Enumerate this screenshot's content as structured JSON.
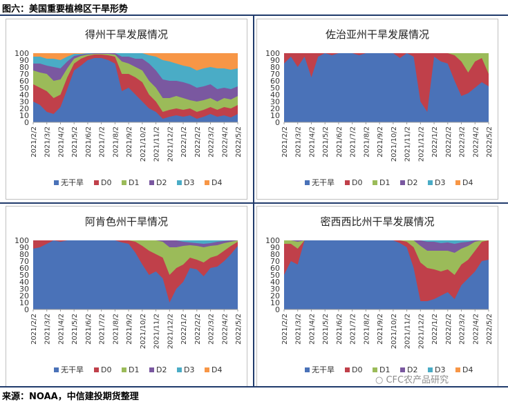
{
  "figure_title": "图六：美国重要植棉区干旱形势",
  "source_text": "来源：NOAA，中信建投期货整理",
  "watermark_text": "CFC农产品研究",
  "colors": {
    "无干旱": "#4a72b8",
    "D0": "#c0404a",
    "D1": "#9bbb59",
    "D2": "#7a58a0",
    "D3": "#4aacc6",
    "D4": "#f79646",
    "rule": "#1f3a6b",
    "frame": "#bfbfbf"
  },
  "chart_data": [
    {
      "type": "area",
      "title": "得州干旱发展情况",
      "categories": [
        "2021/2/2",
        "2021/3/2",
        "2021/4/2",
        "2021/5/2",
        "2021/6/2",
        "2021/7/2",
        "2021/8/2",
        "2021/9/2",
        "2021/10/2",
        "2021/11/2",
        "2021/12/2",
        "2022/1/2",
        "2022/2/2",
        "2022/3/2",
        "2022/4/2",
        "2022/5/2"
      ],
      "ylim": [
        0,
        100
      ],
      "yticks": [
        0,
        10,
        20,
        30,
        40,
        50,
        60,
        70,
        80,
        90,
        100
      ],
      "legend": [
        "无干旱",
        "D0",
        "D1",
        "D2",
        "D3",
        "D4"
      ],
      "x": [
        0,
        0.5,
        1,
        1.5,
        2,
        2.5,
        3,
        3.5,
        4,
        4.5,
        5,
        5.5,
        6,
        6.5,
        7,
        7.5,
        8,
        8.5,
        9,
        9.5,
        10,
        10.5,
        11,
        11.5,
        12,
        12.5,
        13,
        13.5,
        14,
        14.5,
        15
      ],
      "series": [
        {
          "name": "无干旱",
          "cum": [
            30,
            25,
            15,
            12,
            22,
            48,
            75,
            82,
            90,
            93,
            93,
            90,
            85,
            45,
            50,
            40,
            30,
            20,
            15,
            5,
            8,
            10,
            8,
            10,
            5,
            8,
            12,
            8,
            10,
            7,
            12
          ]
        },
        {
          "name": "D0",
          "cum": [
            55,
            50,
            45,
            35,
            40,
            65,
            85,
            92,
            96,
            98,
            98,
            97,
            95,
            70,
            70,
            65,
            58,
            40,
            30,
            15,
            18,
            20,
            18,
            20,
            15,
            18,
            22,
            18,
            22,
            20,
            25
          ]
        },
        {
          "name": "D1",
          "cum": [
            75,
            72,
            70,
            60,
            62,
            78,
            92,
            96,
            98,
            99,
            99,
            99,
            98,
            88,
            85,
            80,
            75,
            60,
            50,
            35,
            35,
            38,
            35,
            32,
            30,
            32,
            35,
            30,
            35,
            33,
            38
          ]
        },
        {
          "name": "D2",
          "cum": [
            85,
            85,
            82,
            80,
            78,
            88,
            96,
            98,
            99,
            100,
            100,
            100,
            100,
            95,
            95,
            92,
            92,
            85,
            75,
            62,
            60,
            60,
            58,
            55,
            50,
            52,
            55,
            48,
            50,
            48,
            52
          ]
        },
        {
          "name": "D3",
          "cum": [
            95,
            95,
            92,
            92,
            90,
            95,
            99,
            99,
            100,
            100,
            100,
            100,
            100,
            100,
            100,
            100,
            100,
            97,
            95,
            90,
            88,
            85,
            82,
            80,
            75,
            78,
            80,
            78,
            78,
            76,
            78
          ]
        },
        {
          "name": "D4",
          "cum": [
            100,
            100,
            100,
            100,
            100,
            100,
            100,
            100,
            100,
            100,
            100,
            100,
            100,
            100,
            100,
            100,
            100,
            100,
            100,
            100,
            100,
            100,
            100,
            100,
            100,
            100,
            100,
            100,
            100,
            100,
            100
          ]
        }
      ]
    },
    {
      "type": "area",
      "title": "佐治亚州干旱发展情况",
      "categories": [
        "2021/2/2",
        "2021/3/2",
        "2021/4/2",
        "2021/5/2",
        "2021/6/2",
        "2021/7/2",
        "2021/8/2",
        "2021/9/2",
        "2021/10/2",
        "2021/11/2",
        "2021/12/2",
        "2022/1/2",
        "2022/2/2",
        "2022/3/2",
        "2022/4/2",
        "2022/5/2"
      ],
      "ylim": [
        0,
        100
      ],
      "yticks": [
        0,
        10,
        20,
        30,
        40,
        50,
        60,
        70,
        80,
        90,
        100
      ],
      "legend": [
        "无干旱",
        "D0",
        "D1",
        "D2",
        "D3",
        "D4"
      ],
      "x": [
        0,
        0.5,
        1,
        1.5,
        2,
        2.5,
        3,
        3.5,
        4,
        4.5,
        5,
        5.5,
        6,
        6.5,
        7,
        7.5,
        8,
        8.5,
        9,
        9.5,
        10,
        10.5,
        11,
        11.5,
        12,
        12.5,
        13,
        13.5,
        14,
        14.5,
        15
      ],
      "series": [
        {
          "name": "无干旱",
          "cum": [
            85,
            95,
            80,
            95,
            65,
            95,
            100,
            97,
            100,
            100,
            100,
            97,
            100,
            100,
            100,
            100,
            100,
            93,
            100,
            95,
            30,
            15,
            95,
            88,
            85,
            60,
            38,
            42,
            50,
            58,
            52
          ]
        },
        {
          "name": "D0",
          "cum": [
            100,
            100,
            100,
            100,
            100,
            100,
            100,
            100,
            100,
            100,
            100,
            100,
            100,
            100,
            100,
            100,
            100,
            100,
            100,
            100,
            100,
            100,
            100,
            100,
            100,
            97,
            88,
            72,
            88,
            93,
            70
          ]
        },
        {
          "name": "D1",
          "cum": [
            100,
            100,
            100,
            100,
            100,
            100,
            100,
            100,
            100,
            100,
            100,
            100,
            100,
            100,
            100,
            100,
            100,
            100,
            100,
            100,
            100,
            100,
            100,
            100,
            100,
            100,
            100,
            100,
            100,
            100,
            100
          ]
        },
        {
          "name": "D2",
          "cum": [
            100,
            100,
            100,
            100,
            100,
            100,
            100,
            100,
            100,
            100,
            100,
            100,
            100,
            100,
            100,
            100,
            100,
            100,
            100,
            100,
            100,
            100,
            100,
            100,
            100,
            100,
            100,
            100,
            100,
            100,
            100
          ]
        },
        {
          "name": "D3",
          "cum": [
            100,
            100,
            100,
            100,
            100,
            100,
            100,
            100,
            100,
            100,
            100,
            100,
            100,
            100,
            100,
            100,
            100,
            100,
            100,
            100,
            100,
            100,
            100,
            100,
            100,
            100,
            100,
            100,
            100,
            100,
            100
          ]
        },
        {
          "name": "D4",
          "cum": [
            100,
            100,
            100,
            100,
            100,
            100,
            100,
            100,
            100,
            100,
            100,
            100,
            100,
            100,
            100,
            100,
            100,
            100,
            100,
            100,
            100,
            100,
            100,
            100,
            100,
            100,
            100,
            100,
            100,
            100,
            100
          ]
        }
      ]
    },
    {
      "type": "area",
      "title": "阿肯色州干旱情况",
      "categories": [
        "2021/2/2",
        "2021/3/2",
        "2021/4/2",
        "2021/5/2",
        "2021/6/2",
        "2021/7/2",
        "2021/8/2",
        "2021/9/2",
        "2021/10/2",
        "2021/11/2",
        "2021/12/2",
        "2022/1/2",
        "2022/2/2",
        "2022/3/2",
        "2022/4/2",
        "2022/5/2"
      ],
      "ylim": [
        0,
        100
      ],
      "yticks": [
        0,
        10,
        20,
        30,
        40,
        50,
        60,
        70,
        80,
        90,
        100
      ],
      "legend": [
        "无干旱",
        "D0",
        "D1",
        "D2",
        "D3",
        "D4"
      ],
      "x": [
        0,
        0.5,
        1,
        1.5,
        2,
        2.5,
        3,
        3.5,
        4,
        4.5,
        5,
        5.5,
        6,
        6.5,
        7,
        7.5,
        8,
        8.5,
        9,
        9.5,
        10,
        10.5,
        11,
        11.5,
        12,
        12.5,
        13,
        13.5,
        14,
        14.5,
        15
      ],
      "series": [
        {
          "name": "无干旱",
          "cum": [
            88,
            90,
            95,
            100,
            98,
            100,
            100,
            100,
            100,
            100,
            100,
            100,
            100,
            97,
            95,
            82,
            65,
            50,
            55,
            45,
            10,
            30,
            40,
            60,
            58,
            48,
            60,
            62,
            70,
            80,
            92
          ]
        },
        {
          "name": "D0",
          "cum": [
            100,
            100,
            100,
            100,
            100,
            100,
            100,
            100,
            100,
            100,
            100,
            100,
            100,
            100,
            100,
            98,
            92,
            85,
            80,
            75,
            50,
            60,
            65,
            75,
            72,
            68,
            75,
            78,
            85,
            92,
            98
          ]
        },
        {
          "name": "D1",
          "cum": [
            100,
            100,
            100,
            100,
            100,
            100,
            100,
            100,
            100,
            100,
            100,
            100,
            100,
            100,
            100,
            100,
            100,
            100,
            100,
            98,
            90,
            90,
            92,
            93,
            92,
            90,
            92,
            93,
            96,
            98,
            100
          ]
        },
        {
          "name": "D2",
          "cum": [
            100,
            100,
            100,
            100,
            100,
            100,
            100,
            100,
            100,
            100,
            100,
            100,
            100,
            100,
            100,
            100,
            100,
            100,
            100,
            100,
            100,
            100,
            98,
            97,
            96,
            95,
            96,
            98,
            99,
            100,
            100
          ]
        },
        {
          "name": "D3",
          "cum": [
            100,
            100,
            100,
            100,
            100,
            100,
            100,
            100,
            100,
            100,
            100,
            100,
            100,
            100,
            100,
            100,
            100,
            100,
            100,
            100,
            100,
            100,
            100,
            100,
            100,
            100,
            100,
            100,
            100,
            100,
            100
          ]
        },
        {
          "name": "D4",
          "cum": [
            100,
            100,
            100,
            100,
            100,
            100,
            100,
            100,
            100,
            100,
            100,
            100,
            100,
            100,
            100,
            100,
            100,
            100,
            100,
            100,
            100,
            100,
            100,
            100,
            100,
            100,
            100,
            100,
            100,
            100,
            100
          ]
        }
      ]
    },
    {
      "type": "area",
      "title": "密西西比州干旱发展情况",
      "categories": [
        "2021/2/2",
        "2021/3/2",
        "2021/4/2",
        "2021/5/2",
        "2021/6/2",
        "2021/7/2",
        "2021/8/2",
        "2021/9/2",
        "2021/10/2",
        "2021/11/2",
        "2021/12/2",
        "2022/1/2",
        "2022/2/2",
        "2022/3/2",
        "2022/4/2",
        "2022/5/2"
      ],
      "ylim": [
        0,
        100
      ],
      "yticks": [
        0,
        10,
        20,
        30,
        40,
        50,
        60,
        70,
        80,
        90,
        100
      ],
      "legend": [
        "无干旱",
        "D0",
        "D1",
        "D2",
        "D3",
        "D4"
      ],
      "x": [
        0,
        0.5,
        1,
        1.5,
        2,
        2.5,
        3,
        3.5,
        4,
        4.5,
        5,
        5.5,
        6,
        6.5,
        7,
        7.5,
        8,
        8.5,
        9,
        9.5,
        10,
        10.5,
        11,
        11.5,
        12,
        12.5,
        13,
        13.5,
        14,
        14.5,
        15
      ],
      "series": [
        {
          "name": "无干旱",
          "cum": [
            50,
            70,
            65,
            100,
            100,
            100,
            100,
            100,
            100,
            100,
            100,
            100,
            100,
            100,
            100,
            100,
            100,
            96,
            90,
            60,
            12,
            12,
            15,
            20,
            25,
            15,
            35,
            45,
            55,
            70,
            72
          ]
        },
        {
          "name": "D0",
          "cum": [
            95,
            95,
            88,
            100,
            100,
            100,
            100,
            100,
            100,
            100,
            100,
            100,
            100,
            100,
            100,
            100,
            100,
            100,
            98,
            90,
            68,
            60,
            58,
            55,
            58,
            50,
            65,
            72,
            85,
            98,
            100
          ]
        },
        {
          "name": "D1",
          "cum": [
            100,
            100,
            98,
            100,
            100,
            100,
            100,
            100,
            100,
            100,
            100,
            100,
            100,
            100,
            100,
            100,
            100,
            100,
            100,
            100,
            92,
            85,
            85,
            85,
            85,
            82,
            88,
            92,
            98,
            100,
            100
          ]
        },
        {
          "name": "D2",
          "cum": [
            100,
            100,
            100,
            100,
            100,
            100,
            100,
            100,
            100,
            100,
            100,
            100,
            100,
            100,
            100,
            100,
            100,
            100,
            100,
            100,
            100,
            98,
            98,
            96,
            97,
            95,
            97,
            98,
            100,
            100,
            100
          ]
        },
        {
          "name": "D3",
          "cum": [
            100,
            100,
            100,
            100,
            100,
            100,
            100,
            100,
            100,
            100,
            100,
            100,
            100,
            100,
            100,
            100,
            100,
            100,
            100,
            100,
            100,
            100,
            100,
            100,
            100,
            100,
            100,
            100,
            100,
            100,
            100
          ]
        },
        {
          "name": "D4",
          "cum": [
            100,
            100,
            100,
            100,
            100,
            100,
            100,
            100,
            100,
            100,
            100,
            100,
            100,
            100,
            100,
            100,
            100,
            100,
            100,
            100,
            100,
            100,
            100,
            100,
            100,
            100,
            100,
            100,
            100,
            100,
            100
          ]
        }
      ]
    }
  ]
}
